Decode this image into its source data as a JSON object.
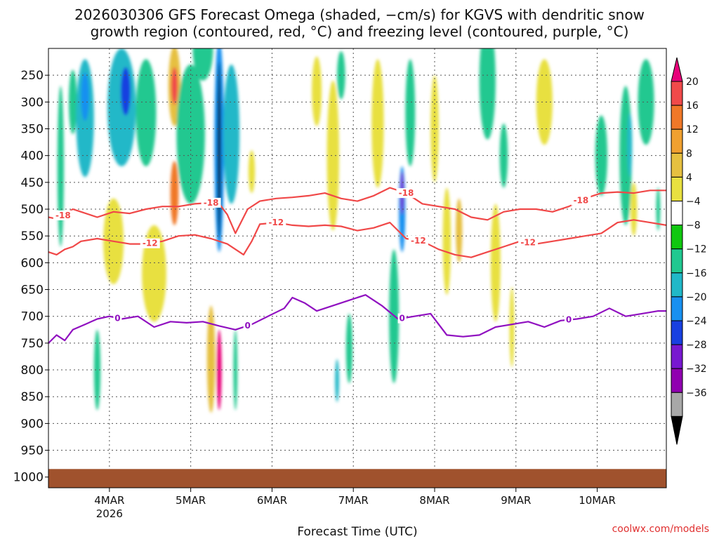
{
  "title": {
    "line1": "2026030306 GFS Forecast Omega (shaded, −cm/s) for KGVS with dendritic snow",
    "line2": "growth region (contoured, red, °C) and freezing level (contoured, purple, °C)"
  },
  "credit": "coolwx.com/models",
  "chart_data": {
    "type": "heatmap",
    "title": "2026030306 GFS Forecast Omega (shaded, −cm/s) for KGVS with dendritic snow growth region (contoured, red, °C) and freezing level (contoured, purple, °C)",
    "xlabel": "Forecast Time (UTC)",
    "ylabel": "",
    "x_range_days": [
      0,
      7.6
    ],
    "x_ticks": [
      {
        "label": "4MAR",
        "sublabel": "2026",
        "day": 0.75
      },
      {
        "label": "5MAR",
        "sublabel": "",
        "day": 1.75
      },
      {
        "label": "6MAR",
        "sublabel": "",
        "day": 2.75
      },
      {
        "label": "7MAR",
        "sublabel": "",
        "day": 3.75
      },
      {
        "label": "8MAR",
        "sublabel": "",
        "day": 4.75
      },
      {
        "label": "9MAR",
        "sublabel": "",
        "day": 5.75
      },
      {
        "label": "10MAR",
        "sublabel": "",
        "day": 6.75
      }
    ],
    "y_ticks": [
      {
        "label": "250",
        "value": 250
      },
      {
        "label": "300",
        "value": 300
      },
      {
        "label": "350",
        "value": 350
      },
      {
        "label": "400",
        "value": 400
      },
      {
        "label": "450",
        "value": 450
      },
      {
        "label": "500",
        "value": 500
      },
      {
        "label": "550",
        "value": 550
      },
      {
        "label": "600",
        "value": 600
      },
      {
        "label": "650",
        "value": 650
      },
      {
        "label": "700",
        "value": 700
      },
      {
        "label": "750",
        "value": 750
      },
      {
        "label": "800",
        "value": 800
      },
      {
        "label": "850",
        "value": 850
      },
      {
        "label": "900",
        "value": 900
      },
      {
        "label": "950",
        "value": 950
      },
      {
        "label": "1000",
        "value": 1000
      }
    ],
    "y_range_hpa": [
      200,
      1020
    ],
    "surface_pressure_hpa": 985,
    "colorbar": {
      "labels": [
        "20",
        "16",
        "12",
        "8",
        "4",
        "−4",
        "−8",
        "−12",
        "−16",
        "−20",
        "−24",
        "−28",
        "−32",
        "−36"
      ],
      "colors": [
        "#e8007a",
        "#f04a4a",
        "#f07828",
        "#f0a030",
        "#e6c040",
        "#e8e040",
        "#ffffff",
        "#10c810",
        "#20c890",
        "#20b8c8",
        "#1890f0",
        "#1840e0",
        "#7818d0",
        "#9000b0",
        "#a8a8a8",
        "#000000"
      ]
    },
    "shading_blobs": [
      {
        "day": 0.15,
        "hpa": 420,
        "dday": 0.08,
        "dhpa": 300,
        "value": -8
      },
      {
        "day": 0.3,
        "hpa": 300,
        "dday": 0.1,
        "dhpa": 120,
        "value": -8
      },
      {
        "day": 0.45,
        "hpa": 330,
        "dday": 0.22,
        "dhpa": 220,
        "value": -12
      },
      {
        "day": 0.45,
        "hpa": 290,
        "dday": 0.1,
        "dhpa": 90,
        "value": -16
      },
      {
        "day": 0.9,
        "hpa": 310,
        "dday": 0.35,
        "dhpa": 220,
        "value": -12
      },
      {
        "day": 0.95,
        "hpa": 280,
        "dday": 0.12,
        "dhpa": 90,
        "value": -20
      },
      {
        "day": 1.2,
        "hpa": 320,
        "dday": 0.25,
        "dhpa": 200,
        "value": -8
      },
      {
        "day": 1.55,
        "hpa": 270,
        "dday": 0.15,
        "dhpa": 150,
        "value": 8
      },
      {
        "day": 1.55,
        "hpa": 270,
        "dday": 0.08,
        "dhpa": 70,
        "value": 16
      },
      {
        "day": 1.55,
        "hpa": 470,
        "dday": 0.1,
        "dhpa": 120,
        "value": 12
      },
      {
        "day": 1.75,
        "hpa": 360,
        "dday": 0.35,
        "dhpa": 260,
        "value": -8
      },
      {
        "day": 1.9,
        "hpa": 200,
        "dday": 0.25,
        "dhpa": 120,
        "value": -8
      },
      {
        "day": 2.1,
        "hpa": 380,
        "dday": 0.12,
        "dhpa": 400,
        "value": -16
      },
      {
        "day": 2.1,
        "hpa": 390,
        "dday": 0.04,
        "dhpa": 330,
        "value": -36
      },
      {
        "day": 2.0,
        "hpa": 780,
        "dday": 0.1,
        "dhpa": 200,
        "value": 8
      },
      {
        "day": 2.1,
        "hpa": 800,
        "dday": 0.06,
        "dhpa": 150,
        "value": 20
      },
      {
        "day": 2.25,
        "hpa": 360,
        "dday": 0.2,
        "dhpa": 260,
        "value": -12
      },
      {
        "day": 2.3,
        "hpa": 800,
        "dday": 0.05,
        "dhpa": 150,
        "value": -8
      },
      {
        "day": 0.6,
        "hpa": 800,
        "dday": 0.08,
        "dhpa": 150,
        "value": -8
      },
      {
        "day": 0.8,
        "hpa": 560,
        "dday": 0.25,
        "dhpa": 160,
        "value": 4
      },
      {
        "day": 1.3,
        "hpa": 620,
        "dday": 0.3,
        "dhpa": 180,
        "value": 4
      },
      {
        "day": 2.5,
        "hpa": 430,
        "dday": 0.08,
        "dhpa": 80,
        "value": 4
      },
      {
        "day": 3.3,
        "hpa": 280,
        "dday": 0.12,
        "dhpa": 130,
        "value": 4
      },
      {
        "day": 3.5,
        "hpa": 400,
        "dday": 0.15,
        "dhpa": 280,
        "value": 4
      },
      {
        "day": 3.6,
        "hpa": 250,
        "dday": 0.1,
        "dhpa": 90,
        "value": -8
      },
      {
        "day": 3.7,
        "hpa": 760,
        "dday": 0.08,
        "dhpa": 130,
        "value": -8
      },
      {
        "day": 3.55,
        "hpa": 820,
        "dday": 0.05,
        "dhpa": 80,
        "value": -12
      },
      {
        "day": 4.05,
        "hpa": 340,
        "dday": 0.15,
        "dhpa": 240,
        "value": 4
      },
      {
        "day": 4.25,
        "hpa": 700,
        "dday": 0.12,
        "dhpa": 250,
        "value": -8
      },
      {
        "day": 4.35,
        "hpa": 500,
        "dday": 0.08,
        "dhpa": 160,
        "value": -16
      },
      {
        "day": 4.35,
        "hpa": 470,
        "dday": 0.04,
        "dhpa": 80,
        "value": -24
      },
      {
        "day": 4.45,
        "hpa": 320,
        "dday": 0.12,
        "dhpa": 200,
        "value": -8
      },
      {
        "day": 4.75,
        "hpa": 350,
        "dday": 0.1,
        "dhpa": 200,
        "value": 4
      },
      {
        "day": 4.9,
        "hpa": 560,
        "dday": 0.1,
        "dhpa": 200,
        "value": 4
      },
      {
        "day": 5.05,
        "hpa": 540,
        "dday": 0.08,
        "dhpa": 120,
        "value": 8
      },
      {
        "day": 5.4,
        "hpa": 260,
        "dday": 0.2,
        "dhpa": 220,
        "value": -8
      },
      {
        "day": 5.6,
        "hpa": 400,
        "dday": 0.1,
        "dhpa": 120,
        "value": -8
      },
      {
        "day": 5.5,
        "hpa": 600,
        "dday": 0.12,
        "dhpa": 220,
        "value": 4
      },
      {
        "day": 5.7,
        "hpa": 720,
        "dday": 0.06,
        "dhpa": 150,
        "value": 4
      },
      {
        "day": 6.1,
        "hpa": 300,
        "dday": 0.2,
        "dhpa": 160,
        "value": 4
      },
      {
        "day": 6.8,
        "hpa": 400,
        "dday": 0.15,
        "dhpa": 150,
        "value": -8
      },
      {
        "day": 7.1,
        "hpa": 400,
        "dday": 0.15,
        "dhpa": 260,
        "value": -8
      },
      {
        "day": 7.15,
        "hpa": 380,
        "dday": 0.06,
        "dhpa": 120,
        "value": -12
      },
      {
        "day": 7.35,
        "hpa": 300,
        "dday": 0.2,
        "dhpa": 160,
        "value": -8
      },
      {
        "day": 7.2,
        "hpa": 500,
        "dday": 0.08,
        "dhpa": 100,
        "value": 4
      },
      {
        "day": 7.5,
        "hpa": 500,
        "dday": 0.05,
        "dhpa": 80,
        "value": -8
      }
    ],
    "contours": [
      {
        "name": "-18",
        "color": "#f04848",
        "labels": [
          {
            "text": "-18",
            "day": 0.18
          },
          {
            "text": "-18",
            "day": 2.0
          },
          {
            "text": "-18",
            "day": 4.4
          },
          {
            "text": "-18",
            "day": 6.55
          }
        ],
        "x_day": [
          0.0,
          0.1,
          0.2,
          0.3,
          0.4,
          0.6,
          0.8,
          1.0,
          1.2,
          1.4,
          1.6,
          1.8,
          2.0,
          2.1,
          2.2,
          2.3,
          2.45,
          2.6,
          2.8,
          3.0,
          3.2,
          3.4,
          3.6,
          3.8,
          4.0,
          4.2,
          4.4,
          4.6,
          4.8,
          5.0,
          5.2,
          5.4,
          5.6,
          5.8,
          6.0,
          6.2,
          6.4,
          6.6,
          6.8,
          7.0,
          7.2,
          7.4,
          7.6
        ],
        "hpa": [
          515,
          518,
          510,
          500,
          505,
          515,
          505,
          508,
          500,
          495,
          495,
          490,
          488,
          490,
          510,
          545,
          500,
          485,
          480,
          478,
          475,
          470,
          480,
          485,
          475,
          460,
          470,
          490,
          495,
          500,
          515,
          520,
          505,
          500,
          500,
          505,
          495,
          480,
          470,
          468,
          470,
          465,
          465
        ]
      },
      {
        "name": "-12",
        "color": "#f04848",
        "labels": [
          {
            "text": "-12",
            "day": 1.25
          },
          {
            "text": "-12",
            "day": 2.8
          },
          {
            "text": "-12",
            "day": 4.55
          },
          {
            "text": "-12",
            "day": 5.9
          }
        ],
        "x_day": [
          0.0,
          0.1,
          0.2,
          0.3,
          0.4,
          0.6,
          0.8,
          1.0,
          1.2,
          1.4,
          1.6,
          1.8,
          2.0,
          2.2,
          2.4,
          2.5,
          2.6,
          2.8,
          3.0,
          3.2,
          3.4,
          3.6,
          3.8,
          4.0,
          4.2,
          4.4,
          4.6,
          4.8,
          5.0,
          5.2,
          5.4,
          5.6,
          5.8,
          6.0,
          6.2,
          6.4,
          6.6,
          6.8,
          7.0,
          7.2,
          7.4,
          7.6
        ],
        "hpa": [
          580,
          585,
          575,
          570,
          560,
          555,
          560,
          565,
          565,
          560,
          550,
          548,
          555,
          565,
          585,
          560,
          528,
          525,
          530,
          532,
          530,
          532,
          540,
          535,
          525,
          555,
          560,
          575,
          585,
          590,
          580,
          570,
          560,
          565,
          560,
          555,
          550,
          545,
          525,
          520,
          525,
          530
        ]
      },
      {
        "name": "0",
        "color": "#9010c0",
        "labels": [
          {
            "text": "0",
            "day": 0.85
          },
          {
            "text": "0",
            "day": 2.45
          },
          {
            "text": "0",
            "day": 4.35
          },
          {
            "text": "0",
            "day": 6.4
          }
        ],
        "x_day": [
          0.0,
          0.1,
          0.2,
          0.3,
          0.45,
          0.6,
          0.75,
          0.9,
          1.1,
          1.3,
          1.5,
          1.7,
          1.9,
          2.1,
          2.3,
          2.5,
          2.7,
          2.9,
          3.0,
          3.15,
          3.3,
          3.5,
          3.7,
          3.9,
          4.1,
          4.3,
          4.5,
          4.7,
          4.9,
          5.1,
          5.3,
          5.5,
          5.7,
          5.9,
          6.1,
          6.3,
          6.5,
          6.7,
          6.9,
          7.1,
          7.3,
          7.5,
          7.6
        ],
        "hpa": [
          750,
          735,
          745,
          725,
          715,
          705,
          700,
          705,
          700,
          720,
          710,
          712,
          710,
          718,
          725,
          715,
          700,
          685,
          665,
          675,
          690,
          680,
          670,
          660,
          680,
          705,
          700,
          695,
          735,
          738,
          735,
          720,
          715,
          710,
          720,
          708,
          705,
          700,
          685,
          700,
          695,
          690,
          690
        ]
      }
    ]
  }
}
